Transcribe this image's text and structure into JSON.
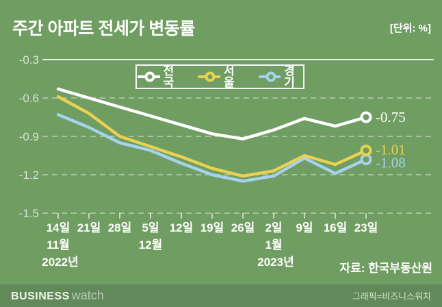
{
  "header": {
    "title": "주간 아파트 전세가 변동률",
    "unit": "[단위: %]"
  },
  "chart_data": {
    "type": "line",
    "title": "주간 아파트 전세가 변동률",
    "unit": "%",
    "x_tick_labels": [
      "14일",
      "21일",
      "28일",
      "5일",
      "12일",
      "19일",
      "26일",
      "2일",
      "9일",
      "16일",
      "23일"
    ],
    "month_labels": [
      {
        "text": "11월",
        "tick_index": 0
      },
      {
        "text": "12월",
        "tick_index": 3
      },
      {
        "text": "1월",
        "tick_index": 7
      }
    ],
    "year_labels": [
      {
        "text": "2022년",
        "tick_index": 0
      },
      {
        "text": "2023년",
        "tick_index": 7
      }
    ],
    "y_ticks": [
      -0.3,
      -0.6,
      -0.9,
      -1.2,
      -1.5
    ],
    "y_tick_labels": [
      "-0.3",
      "-0.6",
      "-0.9",
      "-1.2",
      "-1.5"
    ],
    "ylim": [
      -1.5,
      -0.3
    ],
    "grid": "dashed horizontal, top line solid",
    "legend_position": "top-center boxed",
    "series": [
      {
        "name": "전국",
        "color": "#ffffff",
        "values": [
          -0.53,
          -0.6,
          -0.67,
          -0.74,
          -0.81,
          -0.88,
          -0.92,
          -0.85,
          -0.76,
          -0.82,
          -0.75
        ],
        "end_label": "-0.75"
      },
      {
        "name": "서울",
        "color": "#e9d152",
        "values": [
          -0.59,
          -0.72,
          -0.9,
          -0.98,
          -1.06,
          -1.15,
          -1.21,
          -1.17,
          -1.05,
          -1.12,
          -1.01
        ],
        "end_label": "-1.01"
      },
      {
        "name": "경기",
        "color": "#a6d2ec",
        "values": [
          -0.73,
          -0.83,
          -0.95,
          -1.01,
          -1.11,
          -1.2,
          -1.25,
          -1.21,
          -1.07,
          -1.19,
          -1.08
        ],
        "end_label": "-1.08"
      }
    ],
    "source": "자료: 한국부동산원"
  },
  "footer": {
    "logo_bold": "BUSINESS",
    "logo_light": "watch",
    "credit": "그래픽=비즈니스워치"
  },
  "colors": {
    "background": "#6f9d62",
    "footer_bar": "#62895a",
    "grid": "#ffffff",
    "nationwide": "#ffffff",
    "seoul": "#e9d152",
    "gyeonggi": "#a6d2ec"
  }
}
